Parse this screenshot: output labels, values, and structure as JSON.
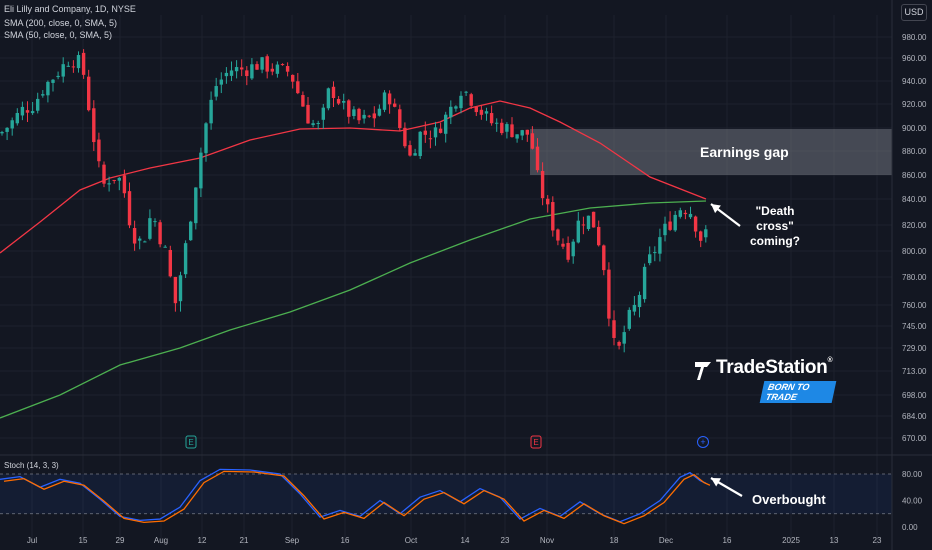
{
  "window": {
    "symbol_title": "Eli Lilly and Company, 1D, NYSE",
    "currency": "USD"
  },
  "indicators": {
    "sma200_label": "SMA (200, close, 0, SMA, 5)",
    "sma50_label": "SMA (50, close, 0, SMA, 5)",
    "stoch_label": "Stoch (14, 3, 3)"
  },
  "annotations": {
    "earnings_gap": "Earnings gap",
    "death_cross": [
      "\"Death",
      "cross\"",
      "coming?"
    ],
    "overbought": "Overbought"
  },
  "branding": {
    "logo_text": "TradeStation",
    "logo_reg": "®",
    "tagline": "BORN TO TRADE"
  },
  "colors": {
    "background": "#131722",
    "up_candle": "#26a69a",
    "down_candle": "#f23645",
    "sma50": "#f23645",
    "sma200": "#4caf50",
    "stoch_k": "#2962ff",
    "stoch_d": "#ff6d00",
    "grid": "#1e222d",
    "axis_text": "#b2b5be"
  },
  "events": {
    "earnings_markers": [
      "E",
      "E"
    ],
    "dividend_marker": "+"
  },
  "chart_data": {
    "type": "candlestick",
    "y_axis_ticks": [
      980,
      960,
      940,
      920,
      900,
      880,
      860,
      840,
      820,
      800,
      780,
      760,
      745,
      729,
      713,
      698,
      684,
      670
    ],
    "ylim": [
      660,
      995
    ],
    "x_tick_labels": [
      "Jul",
      "15",
      "29",
      "Aug",
      "12",
      "21",
      "Sep",
      "16",
      "Oct",
      "14",
      "23",
      "Nov",
      "18",
      "Dec",
      "16",
      "2025",
      "13",
      "23"
    ],
    "x_tick_positions": [
      32,
      83,
      120,
      161,
      202,
      244,
      292,
      345,
      411,
      465,
      505,
      547,
      614,
      666,
      727,
      791,
      834,
      877
    ],
    "grid": true,
    "stochastic": {
      "ticks": [
        80.0,
        40.0,
        0.0
      ],
      "overbought": 80,
      "oversold": 20,
      "ylim": [
        0,
        100
      ]
    }
  }
}
